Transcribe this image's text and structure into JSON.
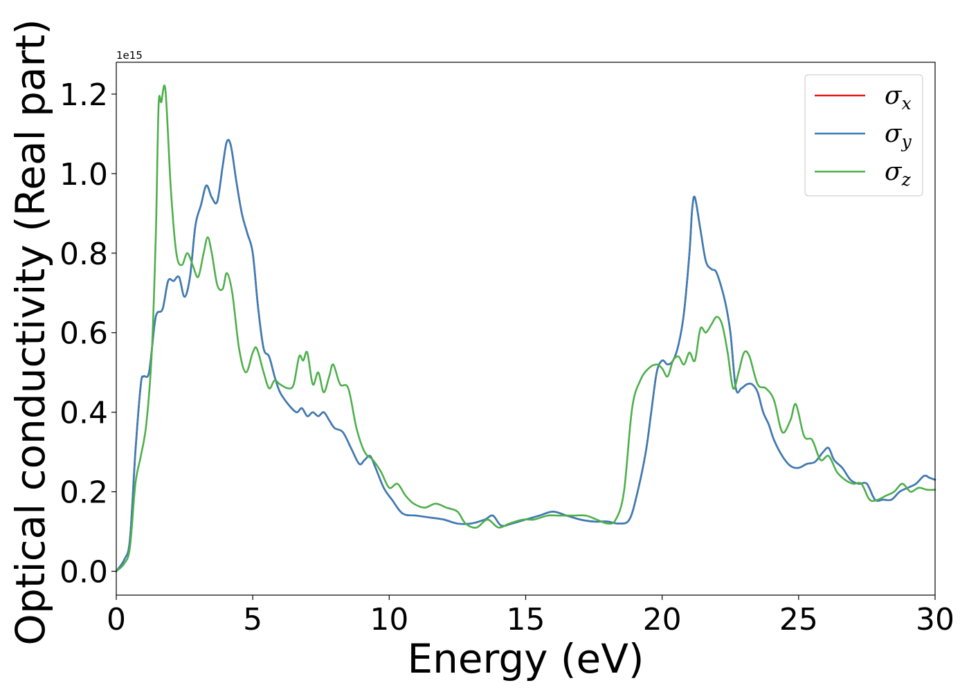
{
  "chart_data": {
    "type": "line",
    "xlabel": "Energy (eV)",
    "ylabel": "Optical conductivity (Real part)",
    "y_offset_label": "1e15",
    "xlim": [
      0,
      30
    ],
    "ylim": [
      -0.06,
      1.28
    ],
    "x_ticks": [
      0,
      5,
      10,
      15,
      20,
      25,
      30
    ],
    "x_tick_labels": [
      "0",
      "5",
      "10",
      "15",
      "20",
      "25",
      "30"
    ],
    "y_ticks": [
      0.0,
      0.2,
      0.4,
      0.6,
      0.8,
      1.0,
      1.2
    ],
    "y_tick_labels": [
      "0.0",
      "0.2",
      "0.4",
      "0.6",
      "0.8",
      "1.0",
      "1.2"
    ],
    "grid": false,
    "legend_position": "top-right",
    "series": [
      {
        "name": "σx",
        "legend_symbol": "σ",
        "legend_subscript": "x",
        "color": "#e41a1c",
        "x": [
          0,
          0.3,
          0.5,
          0.7,
          0.9,
          1.0,
          1.2,
          1.4,
          1.5,
          1.7,
          1.9,
          2.1,
          2.3,
          2.5,
          2.7,
          2.9,
          3.1,
          3.3,
          3.5,
          3.7,
          3.9,
          4.05,
          4.2,
          4.4,
          4.6,
          4.8,
          5.0,
          5.2,
          5.4,
          5.6,
          5.8,
          6.0,
          6.3,
          6.6,
          6.8,
          7.0,
          7.2,
          7.4,
          7.6,
          7.8,
          8.0,
          8.3,
          8.6,
          8.9,
          9.1,
          9.3,
          9.5,
          9.8,
          10.1,
          10.5,
          11.0,
          11.5,
          12.0,
          12.5,
          13.0,
          13.5,
          13.8,
          14.1,
          14.5,
          15.0,
          15.5,
          16.0,
          16.5,
          17.0,
          17.5,
          18.0,
          18.4,
          18.8,
          19.1,
          19.4,
          19.6,
          19.8,
          20.0,
          20.2,
          20.4,
          20.6,
          20.8,
          21.0,
          21.1,
          21.2,
          21.4,
          21.6,
          21.8,
          22.0,
          22.3,
          22.5,
          22.7,
          22.9,
          23.1,
          23.3,
          23.5,
          23.7,
          23.9,
          24.1,
          24.4,
          24.7,
          25.0,
          25.3,
          25.6,
          25.9,
          26.1,
          26.3,
          26.6,
          26.9,
          27.2,
          27.5,
          27.8,
          28.1,
          28.4,
          28.7,
          29.0,
          29.3,
          29.6,
          29.8,
          30.0
        ],
        "y": [
          0.0,
          0.03,
          0.08,
          0.3,
          0.47,
          0.49,
          0.5,
          0.62,
          0.65,
          0.66,
          0.73,
          0.73,
          0.74,
          0.69,
          0.74,
          0.87,
          0.92,
          0.97,
          0.94,
          0.93,
          1.02,
          1.08,
          1.07,
          0.98,
          0.9,
          0.85,
          0.8,
          0.66,
          0.56,
          0.54,
          0.49,
          0.45,
          0.42,
          0.4,
          0.41,
          0.39,
          0.4,
          0.39,
          0.4,
          0.38,
          0.36,
          0.35,
          0.31,
          0.27,
          0.28,
          0.29,
          0.26,
          0.21,
          0.18,
          0.145,
          0.14,
          0.135,
          0.13,
          0.12,
          0.12,
          0.13,
          0.14,
          0.115,
          0.12,
          0.13,
          0.14,
          0.15,
          0.14,
          0.13,
          0.125,
          0.125,
          0.12,
          0.13,
          0.2,
          0.3,
          0.4,
          0.5,
          0.53,
          0.52,
          0.53,
          0.57,
          0.65,
          0.8,
          0.91,
          0.94,
          0.86,
          0.78,
          0.76,
          0.75,
          0.68,
          0.6,
          0.46,
          0.46,
          0.47,
          0.47,
          0.45,
          0.4,
          0.37,
          0.33,
          0.29,
          0.265,
          0.26,
          0.27,
          0.275,
          0.3,
          0.31,
          0.28,
          0.26,
          0.23,
          0.22,
          0.22,
          0.18,
          0.18,
          0.18,
          0.2,
          0.21,
          0.22,
          0.24,
          0.235,
          0.23
        ]
      },
      {
        "name": "σy",
        "legend_symbol": "σ",
        "legend_subscript": "y",
        "color": "#377eb8",
        "x": [
          0,
          0.3,
          0.5,
          0.7,
          0.9,
          1.0,
          1.2,
          1.4,
          1.5,
          1.7,
          1.9,
          2.1,
          2.3,
          2.5,
          2.7,
          2.9,
          3.1,
          3.3,
          3.5,
          3.7,
          3.9,
          4.05,
          4.2,
          4.4,
          4.6,
          4.8,
          5.0,
          5.2,
          5.4,
          5.6,
          5.8,
          6.0,
          6.3,
          6.6,
          6.8,
          7.0,
          7.2,
          7.4,
          7.6,
          7.8,
          8.0,
          8.3,
          8.6,
          8.9,
          9.1,
          9.3,
          9.5,
          9.8,
          10.1,
          10.5,
          11.0,
          11.5,
          12.0,
          12.5,
          13.0,
          13.5,
          13.8,
          14.1,
          14.5,
          15.0,
          15.5,
          16.0,
          16.5,
          17.0,
          17.5,
          18.0,
          18.4,
          18.8,
          19.1,
          19.4,
          19.6,
          19.8,
          20.0,
          20.2,
          20.4,
          20.6,
          20.8,
          21.0,
          21.1,
          21.2,
          21.4,
          21.6,
          21.8,
          22.0,
          22.3,
          22.5,
          22.7,
          22.9,
          23.1,
          23.3,
          23.5,
          23.7,
          23.9,
          24.1,
          24.4,
          24.7,
          25.0,
          25.3,
          25.6,
          25.9,
          26.1,
          26.3,
          26.6,
          26.9,
          27.2,
          27.5,
          27.8,
          28.1,
          28.4,
          28.7,
          29.0,
          29.3,
          29.6,
          29.8,
          30.0
        ],
        "y": [
          0.0,
          0.03,
          0.08,
          0.3,
          0.47,
          0.49,
          0.5,
          0.62,
          0.65,
          0.66,
          0.73,
          0.73,
          0.74,
          0.69,
          0.74,
          0.87,
          0.92,
          0.97,
          0.94,
          0.93,
          1.02,
          1.08,
          1.07,
          0.98,
          0.9,
          0.85,
          0.8,
          0.66,
          0.56,
          0.54,
          0.49,
          0.45,
          0.42,
          0.4,
          0.41,
          0.39,
          0.4,
          0.39,
          0.4,
          0.38,
          0.36,
          0.35,
          0.31,
          0.27,
          0.28,
          0.29,
          0.26,
          0.21,
          0.18,
          0.145,
          0.14,
          0.135,
          0.13,
          0.12,
          0.12,
          0.13,
          0.14,
          0.115,
          0.12,
          0.13,
          0.14,
          0.15,
          0.14,
          0.13,
          0.125,
          0.125,
          0.12,
          0.13,
          0.2,
          0.3,
          0.4,
          0.5,
          0.53,
          0.52,
          0.53,
          0.57,
          0.65,
          0.8,
          0.91,
          0.94,
          0.86,
          0.78,
          0.76,
          0.75,
          0.68,
          0.6,
          0.46,
          0.46,
          0.47,
          0.47,
          0.45,
          0.4,
          0.37,
          0.33,
          0.29,
          0.265,
          0.26,
          0.27,
          0.275,
          0.3,
          0.31,
          0.28,
          0.26,
          0.23,
          0.22,
          0.22,
          0.18,
          0.18,
          0.18,
          0.2,
          0.21,
          0.22,
          0.24,
          0.235,
          0.23
        ]
      },
      {
        "name": "σz",
        "legend_symbol": "σ",
        "legend_subscript": "z",
        "color": "#4daf4a",
        "x": [
          0,
          0.3,
          0.5,
          0.7,
          0.9,
          1.1,
          1.3,
          1.45,
          1.55,
          1.65,
          1.8,
          2.0,
          2.2,
          2.4,
          2.6,
          2.8,
          3.0,
          3.2,
          3.35,
          3.5,
          3.7,
          3.9,
          4.05,
          4.25,
          4.5,
          4.75,
          5.0,
          5.15,
          5.4,
          5.6,
          5.8,
          6.0,
          6.3,
          6.5,
          6.7,
          6.85,
          7.0,
          7.2,
          7.4,
          7.6,
          7.8,
          7.95,
          8.2,
          8.5,
          8.8,
          9.1,
          9.4,
          9.7,
          10.0,
          10.3,
          10.6,
          10.9,
          11.3,
          11.7,
          12.1,
          12.5,
          12.8,
          13.2,
          13.6,
          14.0,
          14.4,
          14.9,
          15.3,
          15.8,
          16.2,
          16.7,
          17.2,
          17.6,
          18.0,
          18.3,
          18.6,
          18.9,
          19.2,
          19.5,
          19.8,
          20.0,
          20.2,
          20.4,
          20.6,
          20.8,
          21.0,
          21.2,
          21.4,
          21.6,
          21.8,
          22.0,
          22.2,
          22.4,
          22.6,
          22.8,
          23.0,
          23.2,
          23.5,
          23.8,
          24.1,
          24.4,
          24.7,
          24.9,
          25.2,
          25.5,
          25.8,
          26.1,
          26.4,
          26.7,
          27.0,
          27.3,
          27.6,
          27.9,
          28.2,
          28.5,
          28.8,
          29.1,
          29.4,
          29.7,
          30.0
        ],
        "y": [
          0.0,
          0.02,
          0.06,
          0.22,
          0.29,
          0.37,
          0.55,
          0.85,
          1.17,
          1.18,
          1.21,
          0.96,
          0.8,
          0.77,
          0.8,
          0.77,
          0.74,
          0.8,
          0.84,
          0.8,
          0.72,
          0.71,
          0.75,
          0.7,
          0.56,
          0.5,
          0.55,
          0.56,
          0.5,
          0.46,
          0.48,
          0.47,
          0.46,
          0.47,
          0.54,
          0.53,
          0.55,
          0.47,
          0.5,
          0.45,
          0.49,
          0.52,
          0.47,
          0.46,
          0.36,
          0.3,
          0.28,
          0.25,
          0.21,
          0.22,
          0.19,
          0.17,
          0.16,
          0.17,
          0.16,
          0.15,
          0.12,
          0.11,
          0.13,
          0.11,
          0.12,
          0.13,
          0.13,
          0.14,
          0.14,
          0.14,
          0.14,
          0.13,
          0.12,
          0.13,
          0.2,
          0.41,
          0.48,
          0.51,
          0.52,
          0.51,
          0.49,
          0.53,
          0.54,
          0.52,
          0.55,
          0.53,
          0.61,
          0.6,
          0.62,
          0.64,
          0.62,
          0.55,
          0.46,
          0.5,
          0.55,
          0.54,
          0.47,
          0.46,
          0.43,
          0.35,
          0.38,
          0.42,
          0.34,
          0.33,
          0.28,
          0.29,
          0.25,
          0.23,
          0.22,
          0.22,
          0.18,
          0.18,
          0.19,
          0.2,
          0.22,
          0.2,
          0.21,
          0.205,
          0.205
        ]
      }
    ]
  }
}
